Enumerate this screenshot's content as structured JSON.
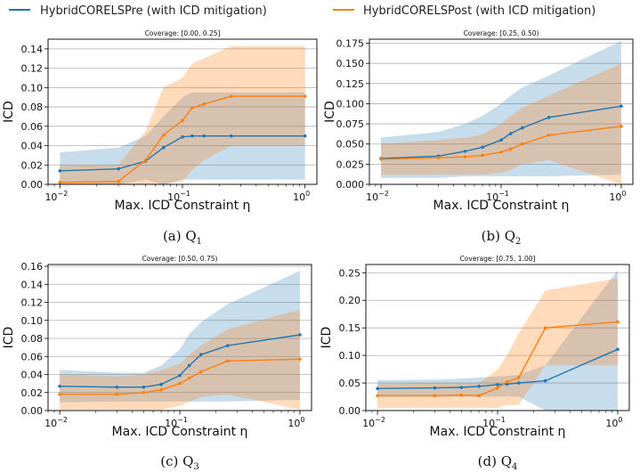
{
  "legend": {
    "items": [
      {
        "label": "HybridCORELSPre (with ICD mitigation)",
        "color": "#1f77b4"
      },
      {
        "label": "HybridCORELSPost (with ICD mitigation)",
        "color": "#ff7f0e"
      }
    ]
  },
  "colors": {
    "pre": "#1f77b4",
    "post": "#ff7f0e",
    "grid": "#b0b0b0"
  },
  "chart_data": [
    {
      "type": "line",
      "title": "Coverage: [0.00, 0.25]",
      "xlabel": "Max. ICD Constraint η",
      "ylabel": "ICD",
      "caption": "(a) Q",
      "caption_sub": "1",
      "xscale": "log",
      "xlim": [
        0.008,
        1.25
      ],
      "ylim": [
        0,
        0.15
      ],
      "xticks": [
        {
          "v": 0.01,
          "base": "10",
          "exp": "−2"
        },
        {
          "v": 0.1,
          "base": "10",
          "exp": "−1"
        },
        {
          "v": 1,
          "base": "10",
          "exp": "0"
        }
      ],
      "yticks": [
        "0.00",
        "0.02",
        "0.04",
        "0.06",
        "0.08",
        "0.10",
        "0.12",
        "0.14"
      ],
      "grid": "y",
      "x": [
        0.01,
        0.03,
        0.05,
        0.07,
        0.1,
        0.12,
        0.15,
        0.25,
        1.0
      ],
      "series": [
        {
          "name": "HybridCORELSPre (with ICD mitigation)",
          "color": "#1f77b4",
          "values": [
            0.014,
            0.016,
            0.024,
            0.038,
            0.049,
            0.05,
            0.05,
            0.05,
            0.05
          ],
          "lower": [
            0.0,
            0.0,
            0.005,
            0.0,
            0.005,
            0.005,
            0.005,
            0.005,
            0.005
          ],
          "upper": [
            0.033,
            0.038,
            0.05,
            0.07,
            0.09,
            0.095,
            0.095,
            0.095,
            0.095
          ]
        },
        {
          "name": "HybridCORELSPost (with ICD mitigation)",
          "color": "#ff7f0e",
          "values": [
            0.002,
            0.003,
            0.025,
            0.051,
            0.066,
            0.079,
            0.083,
            0.091,
            0.091
          ],
          "lower": [
            0.0,
            0.0,
            0.0,
            0.0,
            0.003,
            0.015,
            0.025,
            0.04,
            0.04
          ],
          "upper": [
            0.02,
            0.02,
            0.055,
            0.1,
            0.11,
            0.125,
            0.13,
            0.143,
            0.143
          ]
        }
      ]
    },
    {
      "type": "line",
      "title": "Coverage: [0.25, 0.50)",
      "xlabel": "Max. ICD Constraint η",
      "ylabel": "ICD",
      "caption": "(b) Q",
      "caption_sub": "2",
      "xscale": "log",
      "xlim": [
        0.008,
        1.25
      ],
      "ylim": [
        0,
        0.18
      ],
      "xticks": [
        {
          "v": 0.01,
          "base": "10",
          "exp": "−2"
        },
        {
          "v": 0.1,
          "base": "10",
          "exp": "−1"
        },
        {
          "v": 1,
          "base": "10",
          "exp": "0"
        }
      ],
      "yticks": [
        "0.000",
        "0.025",
        "0.050",
        "0.075",
        "0.100",
        "0.125",
        "0.150",
        "0.175"
      ],
      "grid": "y",
      "x": [
        0.01,
        0.03,
        0.05,
        0.07,
        0.1,
        0.12,
        0.15,
        0.25,
        1.0
      ],
      "series": [
        {
          "name": "HybridCORELSPre (with ICD mitigation)",
          "color": "#1f77b4",
          "values": [
            0.032,
            0.035,
            0.041,
            0.046,
            0.055,
            0.063,
            0.07,
            0.083,
            0.097
          ],
          "lower": [
            0.008,
            0.008,
            0.01,
            0.01,
            0.01,
            0.01,
            0.01,
            0.01,
            0.012
          ],
          "upper": [
            0.058,
            0.065,
            0.075,
            0.085,
            0.1,
            0.11,
            0.12,
            0.135,
            0.178
          ]
        },
        {
          "name": "HybridCORELSPost (with ICD mitigation)",
          "color": "#ff7f0e",
          "values": [
            0.031,
            0.033,
            0.034,
            0.036,
            0.04,
            0.044,
            0.05,
            0.061,
            0.072
          ],
          "lower": [
            0.012,
            0.012,
            0.012,
            0.012,
            0.014,
            0.018,
            0.025,
            0.03,
            0.0
          ],
          "upper": [
            0.05,
            0.055,
            0.058,
            0.062,
            0.075,
            0.085,
            0.095,
            0.11,
            0.15
          ]
        }
      ]
    },
    {
      "type": "line",
      "title": "Coverage: [0.50, 0.75)",
      "xlabel": "Max. ICD Constraint η",
      "ylabel": "ICD",
      "caption": "(c) Q",
      "caption_sub": "3",
      "xscale": "log",
      "xlim": [
        0.008,
        1.25
      ],
      "ylim": [
        0,
        0.162
      ],
      "xticks": [
        {
          "v": 0.01,
          "base": "10",
          "exp": "−2"
        },
        {
          "v": 0.1,
          "base": "10",
          "exp": "−1"
        },
        {
          "v": 1,
          "base": "10",
          "exp": "0"
        }
      ],
      "yticks": [
        "0.00",
        "0.02",
        "0.04",
        "0.06",
        "0.08",
        "0.10",
        "0.12",
        "0.14",
        "0.16"
      ],
      "grid": "y",
      "x": [
        0.01,
        0.03,
        0.05,
        0.07,
        0.1,
        0.12,
        0.15,
        0.25,
        1.0
      ],
      "series": [
        {
          "name": "HybridCORELSPre (with ICD mitigation)",
          "color": "#1f77b4",
          "values": [
            0.027,
            0.026,
            0.026,
            0.029,
            0.039,
            0.05,
            0.062,
            0.072,
            0.084
          ],
          "lower": [
            0.009,
            0.01,
            0.01,
            0.01,
            0.01,
            0.01,
            0.01,
            0.01,
            0.012
          ],
          "upper": [
            0.045,
            0.042,
            0.042,
            0.05,
            0.068,
            0.085,
            0.098,
            0.118,
            0.155
          ]
        },
        {
          "name": "HybridCORELSPost (with ICD mitigation)",
          "color": "#ff7f0e",
          "values": [
            0.018,
            0.018,
            0.02,
            0.023,
            0.03,
            0.036,
            0.043,
            0.055,
            0.057
          ],
          "lower": [
            0.001,
            0.001,
            0.001,
            0.001,
            0.005,
            0.01,
            0.015,
            0.018,
            0.001
          ],
          "upper": [
            0.04,
            0.038,
            0.04,
            0.045,
            0.052,
            0.062,
            0.072,
            0.09,
            0.112
          ]
        }
      ]
    },
    {
      "type": "line",
      "title": "Coverage: [0.75, 1.00]",
      "xlabel": "Max. ICD Constraint η",
      "ylabel": "ICD",
      "caption": "(d) Q",
      "caption_sub": "4",
      "xscale": "log",
      "xlim": [
        0.008,
        1.25
      ],
      "ylim": [
        0,
        0.265
      ],
      "xticks": [
        {
          "v": 0.01,
          "base": "10",
          "exp": "−2"
        },
        {
          "v": 0.1,
          "base": "10",
          "exp": "−1"
        },
        {
          "v": 1,
          "base": "10",
          "exp": "0"
        }
      ],
      "yticks": [
        "0.00",
        "0.05",
        "0.10",
        "0.15",
        "0.20",
        "0.25"
      ],
      "grid": "y",
      "x": [
        0.01,
        0.03,
        0.05,
        0.07,
        0.1,
        0.12,
        0.15,
        0.25,
        1.0
      ],
      "series": [
        {
          "name": "HybridCORELSPre (with ICD mitigation)",
          "color": "#1f77b4",
          "values": [
            0.04,
            0.041,
            0.042,
            0.044,
            0.047,
            0.048,
            0.05,
            0.054,
            0.111
          ],
          "lower": [
            0.025,
            0.025,
            0.025,
            0.025,
            0.025,
            0.025,
            0.025,
            0.0,
            0.0
          ],
          "upper": [
            0.055,
            0.056,
            0.058,
            0.06,
            0.062,
            0.063,
            0.065,
            0.082,
            0.255
          ]
        },
        {
          "name": "HybridCORELSPost (with ICD mitigation)",
          "color": "#ff7f0e",
          "values": [
            0.027,
            0.027,
            0.028,
            0.027,
            0.041,
            0.052,
            0.06,
            0.15,
            0.161
          ],
          "lower": [
            0.005,
            0.005,
            0.005,
            0.005,
            0.005,
            0.01,
            0.01,
            0.082,
            0.082
          ],
          "upper": [
            0.048,
            0.05,
            0.05,
            0.05,
            0.075,
            0.1,
            0.14,
            0.218,
            0.24
          ]
        }
      ]
    }
  ]
}
